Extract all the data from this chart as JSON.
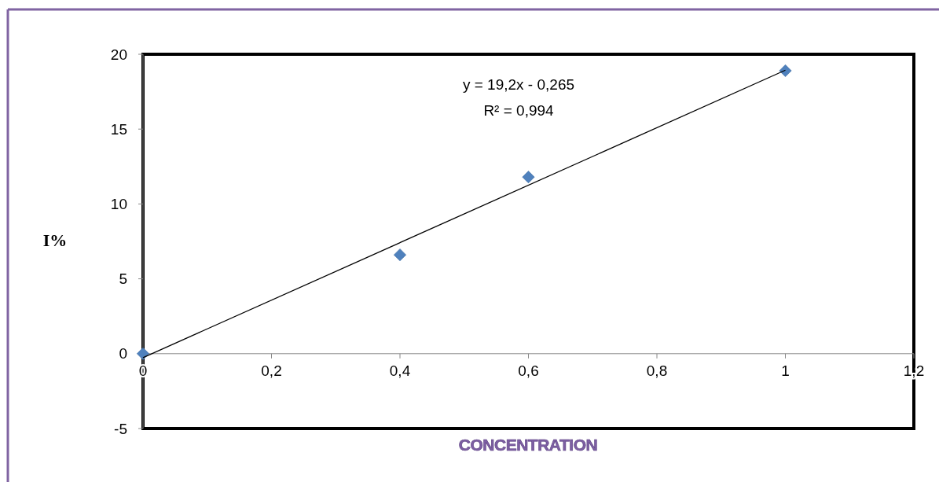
{
  "chart_data": {
    "type": "scatter",
    "xlabel": "CONCENTRATION",
    "ylabel": "I%",
    "annotations": [
      "y = 19,2x - 0,265",
      "R² = 0,994"
    ],
    "xlim": [
      0,
      1.2
    ],
    "ylim": [
      -5,
      20
    ],
    "xticks": [
      0,
      {
        "value": 0.2,
        "label": "0,2"
      },
      {
        "value": 0.4,
        "label": "0,4"
      },
      {
        "value": 0.6,
        "label": "0,6"
      },
      {
        "value": 0.8,
        "label": "0,8"
      },
      1,
      {
        "value": 1.2,
        "label": "1,2"
      }
    ],
    "yticks": [
      -5,
      0,
      5,
      10,
      15,
      20
    ],
    "grid": false,
    "series": [
      {
        "color": "#4f81bd",
        "marker": "diamond",
        "x": [
          0,
          0.4,
          0.6,
          1
        ],
        "values": [
          0,
          6.6,
          11.8,
          18.9
        ]
      },
      {
        "type": "line",
        "color": "#000000",
        "marker": "none",
        "line_style": "solid",
        "x": [
          0,
          1
        ],
        "values": [
          -0.265,
          18.935
        ]
      }
    ]
  }
}
